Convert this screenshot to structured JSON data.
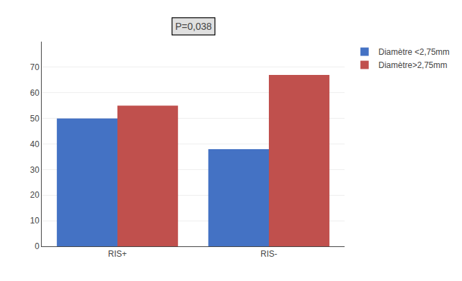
{
  "chart_data": {
    "type": "bar",
    "categories": [
      "RIS+",
      "RIS-"
    ],
    "series": [
      {
        "name": "Diamètre <2,75mm",
        "color": "#4472C4",
        "values": [
          50,
          38
        ]
      },
      {
        "name": "Diamètre>2,75mm",
        "color": "#C0504D",
        "values": [
          55,
          67
        ]
      }
    ],
    "ylim": [
      0,
      80
    ],
    "yticks": [
      0,
      10,
      20,
      30,
      40,
      50,
      60,
      70
    ],
    "grid": true,
    "legend": "upper right",
    "annotations": [
      "P=0,038"
    ]
  }
}
